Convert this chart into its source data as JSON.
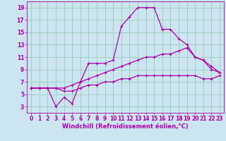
{
  "xlabel": "Windchill (Refroidissement éolien,°C)",
  "bg_color": "#cce5f0",
  "line_color": "#aa00aa",
  "grid_color": "#99ccbb",
  "xlim": [
    -0.5,
    23.5
  ],
  "ylim": [
    2,
    20
  ],
  "xticks": [
    0,
    1,
    2,
    3,
    4,
    5,
    6,
    7,
    8,
    9,
    10,
    11,
    12,
    13,
    14,
    15,
    16,
    17,
    18,
    19,
    20,
    21,
    22,
    23
  ],
  "yticks": [
    3,
    5,
    7,
    9,
    11,
    13,
    15,
    17,
    19
  ],
  "line1_x": [
    0,
    1,
    2,
    3,
    4,
    5,
    6,
    7,
    8,
    9,
    10,
    11,
    12,
    13,
    14,
    15,
    16,
    17,
    18,
    19,
    20,
    21,
    22,
    23
  ],
  "line1_y": [
    6,
    6,
    6,
    3,
    4.5,
    3.5,
    7,
    10,
    10,
    10,
    10.5,
    16,
    17.5,
    19,
    19,
    19,
    15.5,
    15.5,
    14,
    13,
    11,
    10.5,
    9.5,
    8.5
  ],
  "line2_x": [
    0,
    1,
    2,
    3,
    4,
    5,
    6,
    7,
    8,
    9,
    10,
    11,
    12,
    13,
    14,
    15,
    16,
    17,
    18,
    19,
    20,
    21,
    22,
    23
  ],
  "line2_y": [
    6,
    6,
    6,
    6,
    6,
    6.5,
    7,
    7.5,
    8,
    8.5,
    9,
    9.5,
    10,
    10.5,
    11,
    11,
    11.5,
    11.5,
    12,
    12.5,
    11,
    10.5,
    9,
    8.5
  ],
  "line3_x": [
    0,
    1,
    2,
    3,
    4,
    5,
    6,
    7,
    8,
    9,
    10,
    11,
    12,
    13,
    14,
    15,
    16,
    17,
    18,
    19,
    20,
    21,
    22,
    23
  ],
  "line3_y": [
    6,
    6,
    6,
    6,
    5.5,
    5.5,
    6,
    6.5,
    6.5,
    7,
    7,
    7.5,
    7.5,
    8,
    8,
    8,
    8,
    8,
    8,
    8,
    8,
    7.5,
    7.5,
    8
  ],
  "tick_fontsize": 5.5,
  "xlabel_fontsize": 6.0
}
